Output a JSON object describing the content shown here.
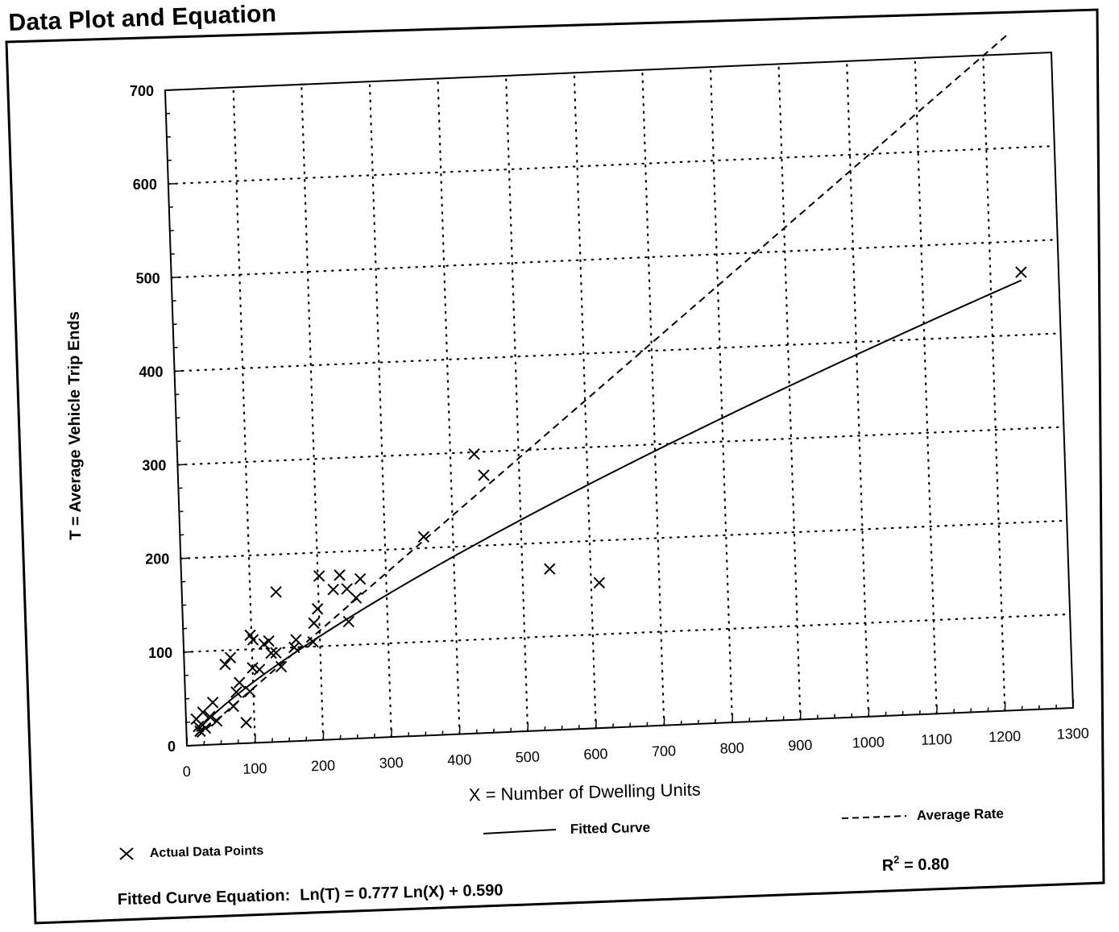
{
  "page": {
    "title": "Data Plot and Equation"
  },
  "chart_data": {
    "type": "scatter",
    "title": "Data Plot and Equation",
    "xlabel": "X = Number of Dwelling Units",
    "ylabel": "T = Average Vehicle Trip Ends",
    "xlim": [
      0,
      1300
    ],
    "ylim": [
      0,
      700
    ],
    "x_ticks": [
      0,
      100,
      200,
      300,
      400,
      500,
      600,
      700,
      800,
      900,
      1000,
      1100,
      1200,
      1300
    ],
    "y_ticks": [
      0,
      100,
      200,
      300,
      400,
      500,
      600,
      700
    ],
    "x_tick_labels": [
      "0",
      "100",
      "200",
      "300",
      "400",
      "500",
      "600",
      "700",
      "800",
      "900",
      "1000",
      "1100",
      "1200",
      "1300"
    ],
    "y_tick_labels": [
      "0",
      "100",
      "200",
      "300",
      "400",
      "500",
      "600",
      "700"
    ],
    "grid": true,
    "series": [
      {
        "name": "Actual Data Points",
        "marker": "x",
        "points": [
          [
            15,
            28
          ],
          [
            18,
            20
          ],
          [
            20,
            15
          ],
          [
            25,
            35
          ],
          [
            28,
            18
          ],
          [
            35,
            30
          ],
          [
            40,
            45
          ],
          [
            45,
            25
          ],
          [
            60,
            85
          ],
          [
            68,
            92
          ],
          [
            70,
            40
          ],
          [
            75,
            55
          ],
          [
            80,
            65
          ],
          [
            88,
            22
          ],
          [
            95,
            55
          ],
          [
            98,
            115
          ],
          [
            100,
            80
          ],
          [
            102,
            110
          ],
          [
            110,
            78
          ],
          [
            118,
            105
          ],
          [
            125,
            108
          ],
          [
            128,
            95
          ],
          [
            135,
            95
          ],
          [
            138,
            160
          ],
          [
            142,
            80
          ],
          [
            162,
            100
          ],
          [
            165,
            108
          ],
          [
            190,
            105
          ],
          [
            192,
            125
          ],
          [
            198,
            140
          ],
          [
            202,
            175
          ],
          [
            222,
            160
          ],
          [
            232,
            175
          ],
          [
            242,
            160
          ],
          [
            243,
            125
          ],
          [
            255,
            150
          ],
          [
            262,
            170
          ],
          [
            357,
            212
          ],
          [
            435,
            298
          ],
          [
            448,
            275
          ],
          [
            540,
            172
          ],
          [
            612,
            155
          ],
          [
            1245,
            467
          ]
        ]
      }
    ],
    "lines": [
      {
        "name": "Fitted Curve",
        "style": "solid",
        "x_range": [
          15,
          1245
        ],
        "equation": "Ln(T) = 0.777 Ln(X) + 0.590"
      },
      {
        "name": "Average Rate",
        "style": "dashed",
        "x_range": [
          15,
          1235
        ],
        "slope": 0.583
      }
    ],
    "annotations": {
      "actual_label": "Actual Data Points",
      "fitted_label": "Fitted Curve",
      "average_label": "Average Rate",
      "r2_base": "R",
      "r2_exp": "2",
      "r2_value": " = 0.80",
      "equation_prefix": "Fitted Curve Equation:",
      "equation": "Ln(T) = 0.777 Ln(X) + 0.590"
    }
  }
}
